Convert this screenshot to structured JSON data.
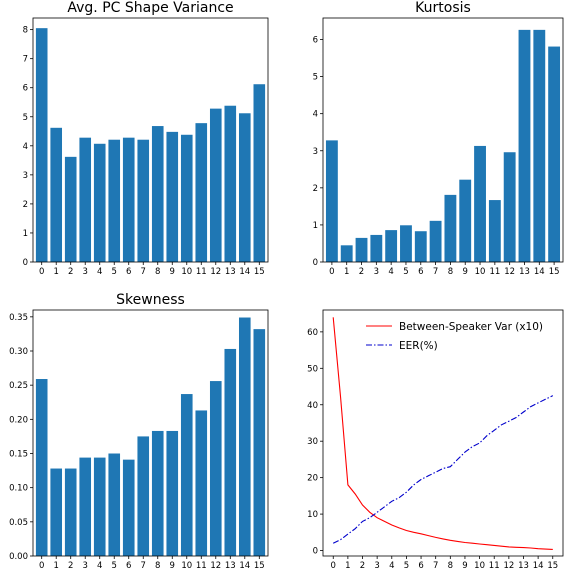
{
  "chart_data": [
    {
      "type": "bar",
      "title": "Avg. PC Shape Variance",
      "xlabel": "",
      "ylabel": "",
      "categories": [
        "0",
        "1",
        "2",
        "3",
        "4",
        "5",
        "6",
        "7",
        "8",
        "9",
        "10",
        "11",
        "12",
        "13",
        "14",
        "15"
      ],
      "values": [
        8.05,
        4.62,
        3.62,
        4.28,
        4.07,
        4.21,
        4.28,
        4.21,
        4.68,
        4.48,
        4.38,
        4.78,
        5.28,
        5.38,
        5.12,
        6.12
      ],
      "ylim": [
        0,
        8.4
      ],
      "yticks": [
        "0",
        "1",
        "2",
        "3",
        "4",
        "5",
        "6",
        "7",
        "8"
      ],
      "color": "#1f77b4"
    },
    {
      "type": "bar",
      "title": "Kurtosis",
      "xlabel": "",
      "ylabel": "",
      "categories": [
        "0",
        "1",
        "2",
        "3",
        "4",
        "5",
        "6",
        "7",
        "8",
        "9",
        "10",
        "11",
        "12",
        "13",
        "14",
        "15"
      ],
      "values": [
        3.28,
        0.45,
        0.65,
        0.73,
        0.86,
        0.99,
        0.83,
        1.11,
        1.81,
        2.22,
        3.13,
        1.67,
        2.96,
        6.26,
        6.26,
        5.81
      ],
      "ylim": [
        0,
        6.58
      ],
      "yticks": [
        "0",
        "1",
        "2",
        "3",
        "4",
        "5",
        "6"
      ],
      "color": "#1f77b4"
    },
    {
      "type": "bar",
      "title": "Skewness",
      "xlabel": "",
      "ylabel": "",
      "categories": [
        "0",
        "1",
        "2",
        "3",
        "4",
        "5",
        "6",
        "7",
        "8",
        "9",
        "10",
        "11",
        "12",
        "13",
        "14",
        "15"
      ],
      "values": [
        0.259,
        0.128,
        0.128,
        0.144,
        0.144,
        0.15,
        0.141,
        0.175,
        0.183,
        0.183,
        0.237,
        0.213,
        0.256,
        0.303,
        0.349,
        0.332
      ],
      "ylim": [
        0,
        0.36
      ],
      "yticks": [
        "0.00",
        "0.05",
        "0.10",
        "0.15",
        "0.20",
        "0.25",
        "0.30",
        "0.35"
      ],
      "color": "#1f77b4"
    },
    {
      "type": "line",
      "title": "",
      "xlabel": "",
      "ylabel": "",
      "x": [
        0,
        0.5,
        1,
        1.5,
        2,
        2.5,
        3,
        3.5,
        4,
        4.5,
        5,
        5.5,
        6,
        6.5,
        7,
        7.5,
        8,
        8.5,
        9,
        9.5,
        10,
        10.5,
        11,
        11.5,
        12,
        12.5,
        13,
        13.5,
        14,
        14.5,
        15
      ],
      "xlim": [
        -0.7,
        15.7
      ],
      "ylim": [
        -1.5,
        66
      ],
      "xticks": [
        "0",
        "1",
        "2",
        "3",
        "4",
        "5",
        "6",
        "7",
        "8",
        "9",
        "10",
        "11",
        "12",
        "13",
        "14",
        "15"
      ],
      "yticks": [
        "0",
        "10",
        "20",
        "30",
        "40",
        "50",
        "60"
      ],
      "legend_position": "top-right",
      "series": [
        {
          "name": "Between-Speaker Var (x10)",
          "color": "#ff0000",
          "style": "solid",
          "values": [
            64,
            42,
            18,
            15.5,
            12.5,
            10.5,
            9,
            8,
            7,
            6.2,
            5.5,
            5,
            4.6,
            4.1,
            3.6,
            3.2,
            2.8,
            2.5,
            2.2,
            2.0,
            1.8,
            1.6,
            1.4,
            1.2,
            1.0,
            0.9,
            0.8,
            0.7,
            0.5,
            0.4,
            0.3
          ]
        },
        {
          "name": "EER(%)",
          "color": "#0000cc",
          "style": "dashdot",
          "values": [
            2,
            3,
            4.5,
            6,
            8,
            9,
            10.5,
            12,
            13.5,
            14.5,
            16,
            18,
            19.5,
            20.5,
            21.5,
            22.5,
            23,
            25,
            27,
            28.5,
            29.5,
            31.5,
            33,
            34.5,
            35.5,
            36.5,
            38,
            39.5,
            40.5,
            41.5,
            42.5
          ]
        }
      ]
    }
  ]
}
